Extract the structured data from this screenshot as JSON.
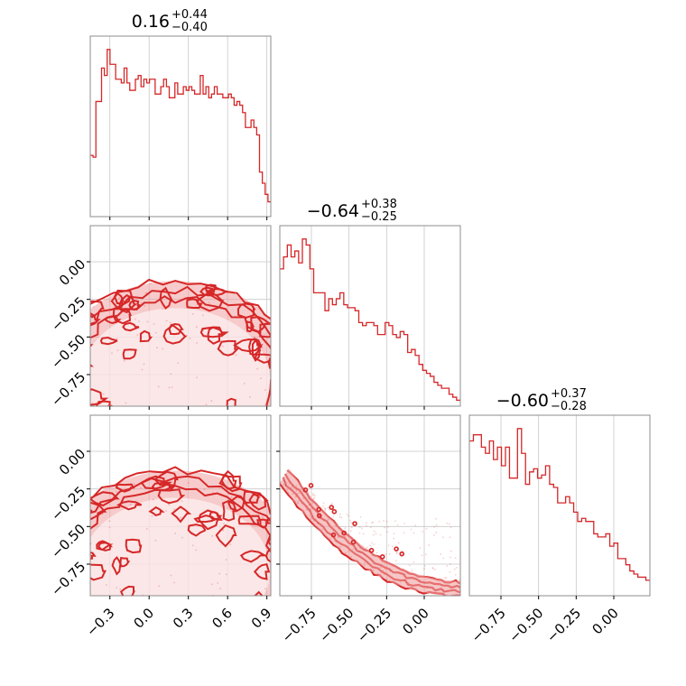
{
  "chart_data": {
    "type": "corner",
    "color": "#d62728",
    "fill_color": "#f0a0a0",
    "grid": true,
    "parameters": [
      {
        "range": [
          -0.45,
          0.93
        ],
        "ticks": [
          -0.3,
          0.0,
          0.3,
          0.6,
          0.9
        ],
        "tick_labels": [
          "−0.3",
          "0.0",
          "0.3",
          "0.6",
          "0.9"
        ],
        "median": "0.16",
        "upper": "+0.44",
        "lower": "−0.40",
        "hist_values": [
          33,
          32,
          62,
          62,
          80,
          76,
          90,
          82,
          82,
          74,
          74,
          72,
          80,
          72,
          68,
          68,
          74,
          76,
          70,
          74,
          72,
          74,
          74,
          66,
          66,
          70,
          74,
          70,
          64,
          64,
          72,
          66,
          66,
          70,
          68,
          70,
          68,
          66,
          66,
          76,
          66,
          70,
          64,
          66,
          70,
          66,
          66,
          64,
          64,
          66,
          64,
          60,
          62,
          60,
          56,
          48,
          48,
          52,
          48,
          44,
          24,
          18,
          12,
          8
        ]
      },
      {
        "range": [
          -0.96,
          0.24
        ],
        "ticks": [
          -0.75,
          -0.5,
          -0.25,
          0.0
        ],
        "tick_labels": [
          "−0.75",
          "−0.50",
          "−0.25",
          "0.00"
        ],
        "median": "−0.64",
        "upper": "+0.38",
        "lower": "−0.25",
        "hist_values": [
          92,
          100,
          108,
          100,
          104,
          96,
          112,
          108,
          92,
          76,
          76,
          76,
          64,
          72,
          68,
          72,
          76,
          68,
          66,
          66,
          64,
          56,
          54,
          56,
          56,
          54,
          48,
          48,
          56,
          54,
          48,
          46,
          50,
          48,
          36,
          38,
          34,
          28,
          24,
          22,
          20,
          16,
          14,
          12,
          12,
          8,
          6,
          4
        ]
      },
      {
        "range": [
          -0.96,
          0.24
        ],
        "ticks": [
          -0.75,
          -0.5,
          -0.25,
          0.0
        ],
        "tick_labels": [
          "−0.75",
          "−0.50",
          "−0.25",
          "0.00"
        ],
        "median": "−0.60",
        "upper": "+0.37",
        "lower": "−0.28",
        "hist_values": [
          100,
          104,
          104,
          96,
          92,
          100,
          88,
          96,
          84,
          96,
          76,
          76,
          108,
          92,
          72,
          80,
          82,
          76,
          78,
          84,
          72,
          70,
          60,
          60,
          64,
          60,
          54,
          48,
          50,
          48,
          48,
          40,
          38,
          38,
          40,
          32,
          34,
          24,
          24,
          20,
          16,
          14,
          12,
          12,
          10
        ]
      }
    ]
  }
}
